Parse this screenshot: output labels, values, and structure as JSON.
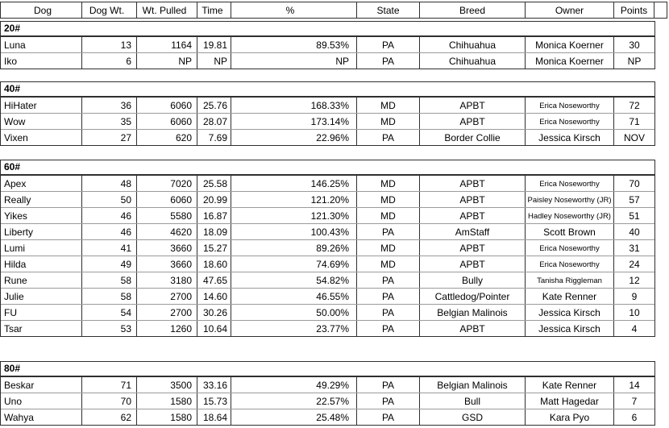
{
  "colors": {
    "border_dark": "#2f2f2f",
    "border_light": "#9b9b9b",
    "text": "#000000",
    "background": "#ffffff"
  },
  "table": {
    "columns": [
      {
        "key": "dog",
        "label": "Dog"
      },
      {
        "key": "dog-wt",
        "label": "Dog Wt."
      },
      {
        "key": "wt-pulled",
        "label": "Wt. Pulled"
      },
      {
        "key": "time",
        "label": "Time"
      },
      {
        "key": "percent",
        "label": "%"
      },
      {
        "key": "state",
        "label": "State"
      },
      {
        "key": "breed",
        "label": "Breed"
      },
      {
        "key": "owner",
        "label": "Owner"
      },
      {
        "key": "points",
        "label": "Points"
      }
    ],
    "sections": [
      {
        "label": "20#",
        "rows": [
          {
            "cells": [
              "Luna",
              "13",
              "1164",
              "19.81",
              "89.53%",
              "PA",
              "Chihuahua",
              "Monica Koerner",
              "30"
            ],
            "owner_small": false
          },
          {
            "cells": [
              "Iko",
              "6",
              "NP",
              "NP",
              "NP",
              "PA",
              "Chihuahua",
              "Monica Koerner",
              "NP"
            ],
            "owner_small": false
          }
        ]
      },
      {
        "label": "40#",
        "rows": [
          {
            "cells": [
              "HiHater",
              "36",
              "6060",
              "25.76",
              "168.33%",
              "MD",
              "APBT",
              "Erica Noseworthy",
              "72"
            ],
            "owner_small": true
          },
          {
            "cells": [
              "Wow",
              "35",
              "6060",
              "28.07",
              "173.14%",
              "MD",
              "APBT",
              "Erica Noseworthy",
              "71"
            ],
            "owner_small": true
          },
          {
            "cells": [
              "Vixen",
              "27",
              "620",
              "7.69",
              "22.96%",
              "PA",
              "Border Collie",
              "Jessica Kirsch",
              "NOV"
            ],
            "owner_small": false
          }
        ]
      },
      {
        "label": "60#",
        "rows": [
          {
            "cells": [
              "Apex",
              "48",
              "7020",
              "25.58",
              "146.25%",
              "MD",
              "APBT",
              "Erica Noseworthy",
              "70"
            ],
            "owner_small": true
          },
          {
            "cells": [
              "Really",
              "50",
              "6060",
              "20.99",
              "121.20%",
              "MD",
              "APBT",
              "Paisley Noseworthy (JR)",
              "57"
            ],
            "owner_small": true
          },
          {
            "cells": [
              "Yikes",
              "46",
              "5580",
              "16.87",
              "121.30%",
              "MD",
              "APBT",
              "Hadley Noseworthy (JR)",
              "51"
            ],
            "owner_small": true
          },
          {
            "cells": [
              "Liberty",
              "46",
              "4620",
              "18.09",
              "100.43%",
              "PA",
              "AmStaff",
              "Scott Brown",
              "40"
            ],
            "owner_small": false
          },
          {
            "cells": [
              "Lumi",
              "41",
              "3660",
              "15.27",
              "89.26%",
              "MD",
              "APBT",
              "Erica Noseworthy",
              "31"
            ],
            "owner_small": true
          },
          {
            "cells": [
              "Hilda",
              "49",
              "3660",
              "18.60",
              "74.69%",
              "MD",
              "APBT",
              "Erica Noseworthy",
              "24"
            ],
            "owner_small": true
          },
          {
            "cells": [
              "Rune",
              "58",
              "3180",
              "47.65",
              "54.82%",
              "PA",
              "Bully",
              "Tanisha Riggleman",
              "12"
            ],
            "owner_small": true
          },
          {
            "cells": [
              "Julie",
              "58",
              "2700",
              "14.60",
              "46.55%",
              "PA",
              "Cattledog/Pointer",
              "Kate Renner",
              "9"
            ],
            "owner_small": false
          },
          {
            "cells": [
              "FU",
              "54",
              "2700",
              "30.26",
              "50.00%",
              "PA",
              "Belgian Malinois",
              "Jessica Kirsch",
              "10"
            ],
            "owner_small": false
          },
          {
            "cells": [
              "Tsar",
              "53",
              "1260",
              "10.64",
              "23.77%",
              "PA",
              "APBT",
              "Jessica Kirsch",
              "4"
            ],
            "owner_small": false
          }
        ]
      },
      {
        "label": "80#",
        "rows": [
          {
            "cells": [
              "Beskar",
              "71",
              "3500",
              "33.16",
              "49.29%",
              "PA",
              "Belgian Malinois",
              "Kate Renner",
              "14"
            ],
            "owner_small": false
          },
          {
            "cells": [
              "Uno",
              "70",
              "1580",
              "15.73",
              "22.57%",
              "PA",
              "Bull",
              "Matt Hagedar",
              "7"
            ],
            "owner_small": false
          },
          {
            "cells": [
              "Wahya",
              "62",
              "1580",
              "18.64",
              "25.48%",
              "PA",
              "GSD",
              "Kara Pyo",
              "6"
            ],
            "owner_small": false
          }
        ]
      }
    ]
  }
}
